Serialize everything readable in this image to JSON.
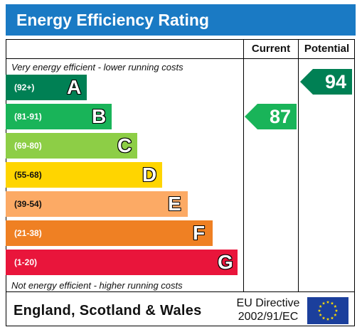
{
  "header": {
    "title": "Energy Efficiency Rating"
  },
  "columns": {
    "current": "Current",
    "potential": "Potential"
  },
  "notes": {
    "top": "Very energy efficient - lower running costs",
    "bottom": "Not energy efficient - higher running costs"
  },
  "footer": {
    "country": "England, Scotland & Wales",
    "directive_line1": "EU Directive",
    "directive_line2": "2002/91/EC"
  },
  "chart_data": {
    "type": "bar",
    "title": "Energy Efficiency Rating",
    "bands": [
      {
        "range": "(92+)",
        "letter": "A",
        "color": "#008054"
      },
      {
        "range": "(81-91)",
        "letter": "B",
        "color": "#19b459"
      },
      {
        "range": "(69-80)",
        "letter": "C",
        "color": "#8dce46"
      },
      {
        "range": "(55-68)",
        "letter": "D",
        "color": "#ffd500"
      },
      {
        "range": "(39-54)",
        "letter": "E",
        "color": "#fcaa65"
      },
      {
        "range": "(21-38)",
        "letter": "F",
        "color": "#ef8023"
      },
      {
        "range": "(1-20)",
        "letter": "G",
        "color": "#e9153b"
      }
    ],
    "current": {
      "value": "87",
      "band": "B",
      "color": "#19b459"
    },
    "potential": {
      "value": "94",
      "band": "A",
      "color": "#008054"
    }
  }
}
